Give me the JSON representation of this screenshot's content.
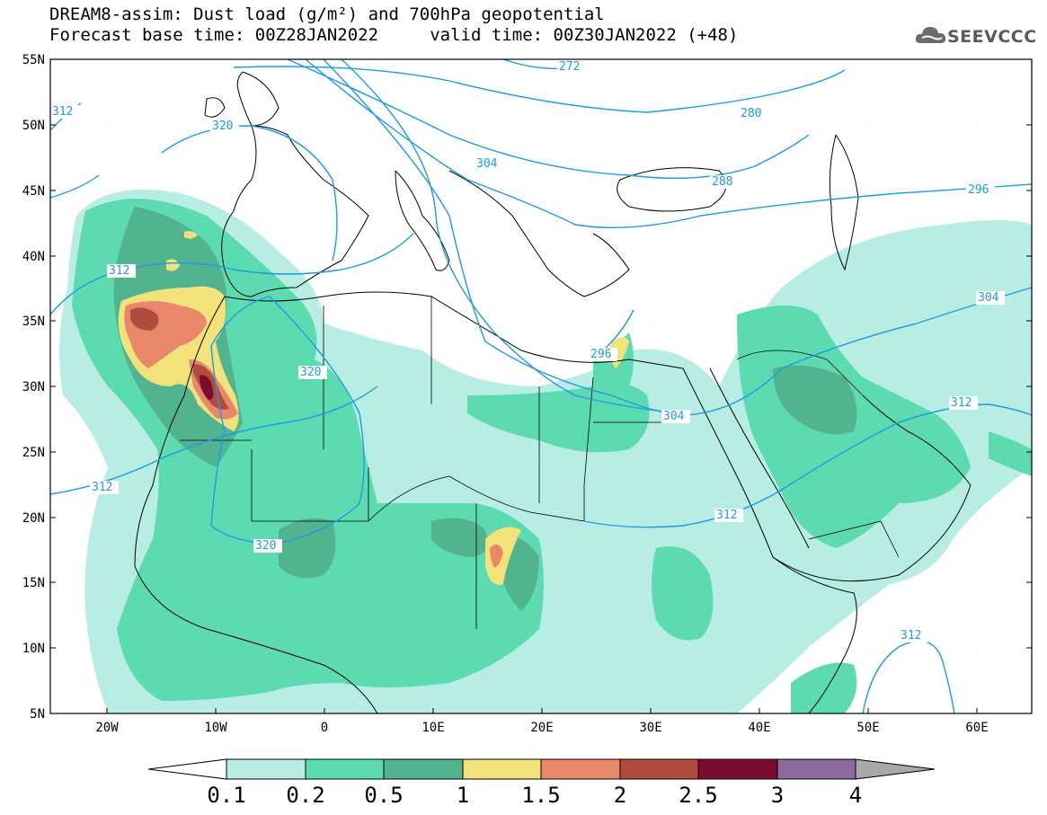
{
  "header": {
    "title_line1": "DREAM8-assim: Dust load (g/m²) and 700hPa geopotential",
    "title_line2": "Forecast base time: 00Z28JAN2022     valid time: 00Z30JAN2022 (+48)",
    "logo_text": "SEEVCCC",
    "logo_icon": "cloud-icon"
  },
  "map": {
    "lat_labels": [
      "55N",
      "50N",
      "45N",
      "40N",
      "35N",
      "30N",
      "25N",
      "20N",
      "15N",
      "10N",
      "5N"
    ],
    "lon_labels": [
      "20W",
      "10W",
      "0",
      "10E",
      "20E",
      "30E",
      "40E",
      "50E",
      "60E"
    ],
    "contour_labels": [
      "272",
      "280",
      "288",
      "296",
      "304",
      "304",
      "312",
      "312",
      "312",
      "312",
      "312",
      "320",
      "320",
      "320",
      "296",
      "304",
      "312"
    ],
    "contour_color": "#1e9be6"
  },
  "legend": {
    "levels": [
      "0.1",
      "0.2",
      "0.5",
      "1",
      "1.5",
      "2",
      "2.5",
      "3",
      "4"
    ],
    "colors": [
      "#b8ede3",
      "#5ddbb0",
      "#52b48e",
      "#f1e27a",
      "#e8876a",
      "#b14b3e",
      "#7d0b2d",
      "#8a6a9f",
      "#a8a8a8"
    ]
  }
}
